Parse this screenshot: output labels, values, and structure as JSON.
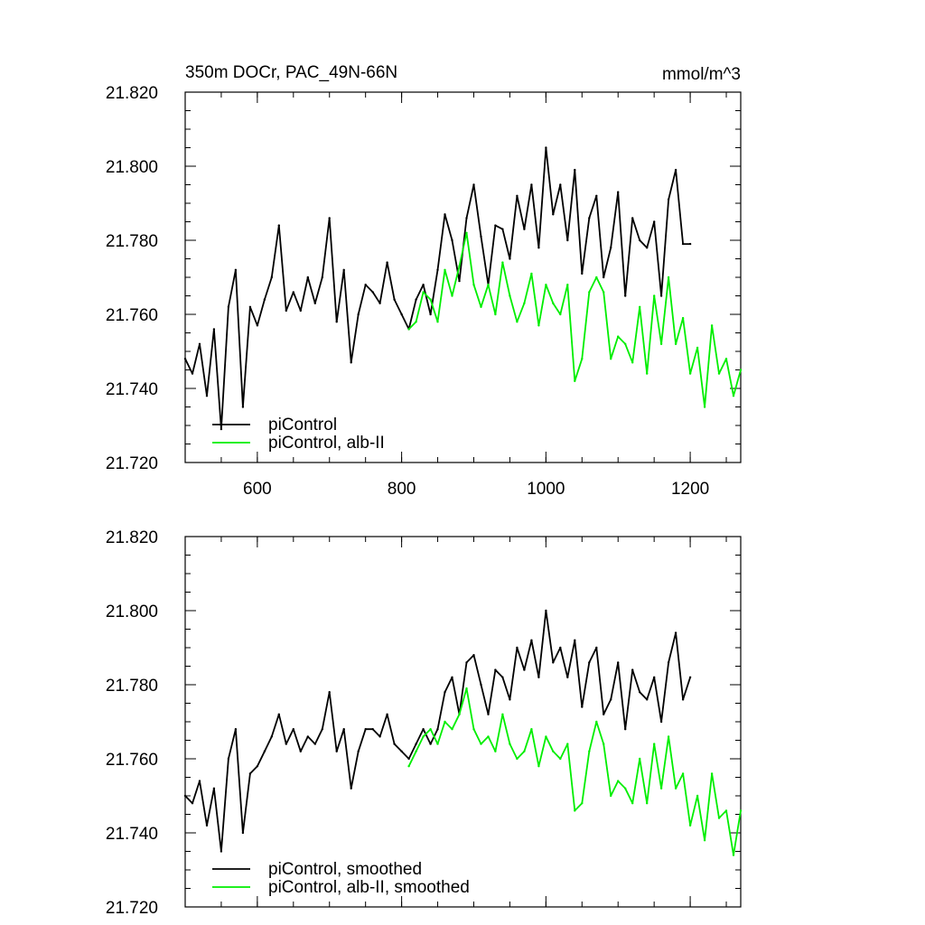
{
  "chart_data": [
    {
      "type": "line",
      "title": "350m DOCr, PAC_49N-66N",
      "units": "mmol/m^3",
      "xlim": [
        500,
        1270
      ],
      "ylim": [
        21.72,
        21.82
      ],
      "xticks": [
        600,
        800,
        1000,
        1200
      ],
      "xtick_labels": [
        "600",
        "800",
        "1000",
        "1200"
      ],
      "yticks": [
        21.72,
        21.74,
        21.76,
        21.78,
        21.8,
        21.82
      ],
      "ytick_labels": [
        "21.720",
        "21.740",
        "21.760",
        "21.780",
        "21.800",
        "21.820"
      ],
      "legend": "bottom-left",
      "series": [
        {
          "name": "piControl",
          "color": "#000000",
          "x": [
            500,
            510,
            520,
            530,
            540,
            550,
            560,
            570,
            580,
            590,
            600,
            610,
            620,
            630,
            640,
            650,
            660,
            670,
            680,
            690,
            700,
            710,
            720,
            730,
            740,
            750,
            760,
            770,
            780,
            790,
            800,
            810,
            820,
            830,
            840,
            850,
            860,
            870,
            880,
            890,
            900,
            910,
            920,
            930,
            940,
            950,
            960,
            970,
            980,
            990,
            1000,
            1010,
            1020,
            1030,
            1040,
            1050,
            1060,
            1070,
            1080,
            1090,
            1100,
            1110,
            1120,
            1130,
            1140,
            1150,
            1160,
            1170,
            1180,
            1190,
            1200
          ],
          "values": [
            21.748,
            21.744,
            21.752,
            21.738,
            21.756,
            21.729,
            21.762,
            21.772,
            21.735,
            21.762,
            21.757,
            21.764,
            21.77,
            21.784,
            21.761,
            21.766,
            21.761,
            21.77,
            21.763,
            21.77,
            21.786,
            21.758,
            21.772,
            21.747,
            21.76,
            21.768,
            21.766,
            21.763,
            21.774,
            21.764,
            21.76,
            21.756,
            21.764,
            21.768,
            21.76,
            21.772,
            21.787,
            21.78,
            21.769,
            21.786,
            21.795,
            21.781,
            21.768,
            21.784,
            21.783,
            21.775,
            21.792,
            21.783,
            21.795,
            21.778,
            21.805,
            21.787,
            21.795,
            21.78,
            21.799,
            21.771,
            21.786,
            21.792,
            21.77,
            21.778,
            21.793,
            21.765,
            21.786,
            21.78,
            21.778,
            21.785,
            21.765,
            21.791,
            21.799,
            21.779,
            21.779
          ]
        },
        {
          "name": "piControl, alb-II",
          "color": "#00ee00",
          "x": [
            810,
            820,
            830,
            840,
            850,
            860,
            870,
            880,
            890,
            900,
            910,
            920,
            930,
            940,
            950,
            960,
            970,
            980,
            990,
            1000,
            1010,
            1020,
            1030,
            1040,
            1050,
            1060,
            1070,
            1080,
            1090,
            1100,
            1110,
            1120,
            1130,
            1140,
            1150,
            1160,
            1170,
            1180,
            1190,
            1200,
            1210,
            1220,
            1230,
            1240,
            1250,
            1260,
            1270
          ],
          "values": [
            21.756,
            21.758,
            21.766,
            21.764,
            21.758,
            21.772,
            21.765,
            21.773,
            21.782,
            21.768,
            21.762,
            21.768,
            21.76,
            21.774,
            21.765,
            21.758,
            21.763,
            21.771,
            21.757,
            21.768,
            21.763,
            21.76,
            21.768,
            21.742,
            21.748,
            21.766,
            21.77,
            21.766,
            21.748,
            21.754,
            21.752,
            21.747,
            21.762,
            21.744,
            21.765,
            21.752,
            21.77,
            21.752,
            21.759,
            21.744,
            21.751,
            21.735,
            21.757,
            21.744,
            21.748,
            21.738,
            21.745
          ]
        }
      ]
    },
    {
      "type": "line",
      "title": "",
      "units": "",
      "xlim": [
        500,
        1270
      ],
      "ylim": [
        21.72,
        21.82
      ],
      "xticks": [
        600,
        800,
        1000,
        1200
      ],
      "xtick_labels": [],
      "yticks": [
        21.72,
        21.74,
        21.76,
        21.78,
        21.8,
        21.82
      ],
      "ytick_labels": [
        "21.720",
        "21.740",
        "21.760",
        "21.780",
        "21.800",
        "21.820"
      ],
      "legend": "bottom-left",
      "series": [
        {
          "name": "piControl, smoothed",
          "color": "#000000",
          "x": [
            500,
            510,
            520,
            530,
            540,
            550,
            560,
            570,
            580,
            590,
            600,
            610,
            620,
            630,
            640,
            650,
            660,
            670,
            680,
            690,
            700,
            710,
            720,
            730,
            740,
            750,
            760,
            770,
            780,
            790,
            800,
            810,
            820,
            830,
            840,
            850,
            860,
            870,
            880,
            890,
            900,
            910,
            920,
            930,
            940,
            950,
            960,
            970,
            980,
            990,
            1000,
            1010,
            1020,
            1030,
            1040,
            1050,
            1060,
            1070,
            1080,
            1090,
            1100,
            1110,
            1120,
            1130,
            1140,
            1150,
            1160,
            1170,
            1180,
            1190,
            1200
          ],
          "values": [
            21.75,
            21.748,
            21.754,
            21.742,
            21.752,
            21.735,
            21.76,
            21.768,
            21.74,
            21.756,
            21.758,
            21.762,
            21.766,
            21.772,
            21.764,
            21.768,
            21.762,
            21.766,
            21.764,
            21.768,
            21.778,
            21.762,
            21.768,
            21.752,
            21.762,
            21.768,
            21.768,
            21.766,
            21.772,
            21.764,
            21.762,
            21.76,
            21.764,
            21.768,
            21.764,
            21.768,
            21.778,
            21.782,
            21.772,
            21.786,
            21.788,
            21.78,
            21.772,
            21.784,
            21.782,
            21.776,
            21.79,
            21.784,
            21.792,
            21.782,
            21.8,
            21.786,
            21.79,
            21.782,
            21.792,
            21.774,
            21.786,
            21.79,
            21.772,
            21.776,
            21.786,
            21.768,
            21.784,
            21.778,
            21.776,
            21.782,
            21.77,
            21.786,
            21.794,
            21.776,
            21.782
          ]
        },
        {
          "name": "piControl, alb-II, smoothed",
          "color": "#00ee00",
          "x": [
            810,
            820,
            830,
            840,
            850,
            860,
            870,
            880,
            890,
            900,
            910,
            920,
            930,
            940,
            950,
            960,
            970,
            980,
            990,
            1000,
            1010,
            1020,
            1030,
            1040,
            1050,
            1060,
            1070,
            1080,
            1090,
            1100,
            1110,
            1120,
            1130,
            1140,
            1150,
            1160,
            1170,
            1180,
            1190,
            1200,
            1210,
            1220,
            1230,
            1240,
            1250,
            1260,
            1270
          ],
          "values": [
            21.758,
            21.762,
            21.766,
            21.768,
            21.764,
            21.77,
            21.768,
            21.772,
            21.779,
            21.768,
            21.764,
            21.766,
            21.762,
            21.772,
            21.764,
            21.76,
            21.762,
            21.768,
            21.758,
            21.766,
            21.762,
            21.76,
            21.764,
            21.746,
            21.748,
            21.762,
            21.77,
            21.764,
            21.75,
            21.754,
            21.752,
            21.748,
            21.76,
            21.748,
            21.764,
            21.752,
            21.766,
            21.752,
            21.756,
            21.742,
            21.75,
            21.738,
            21.756,
            21.744,
            21.746,
            21.734,
            21.746
          ]
        }
      ]
    }
  ]
}
